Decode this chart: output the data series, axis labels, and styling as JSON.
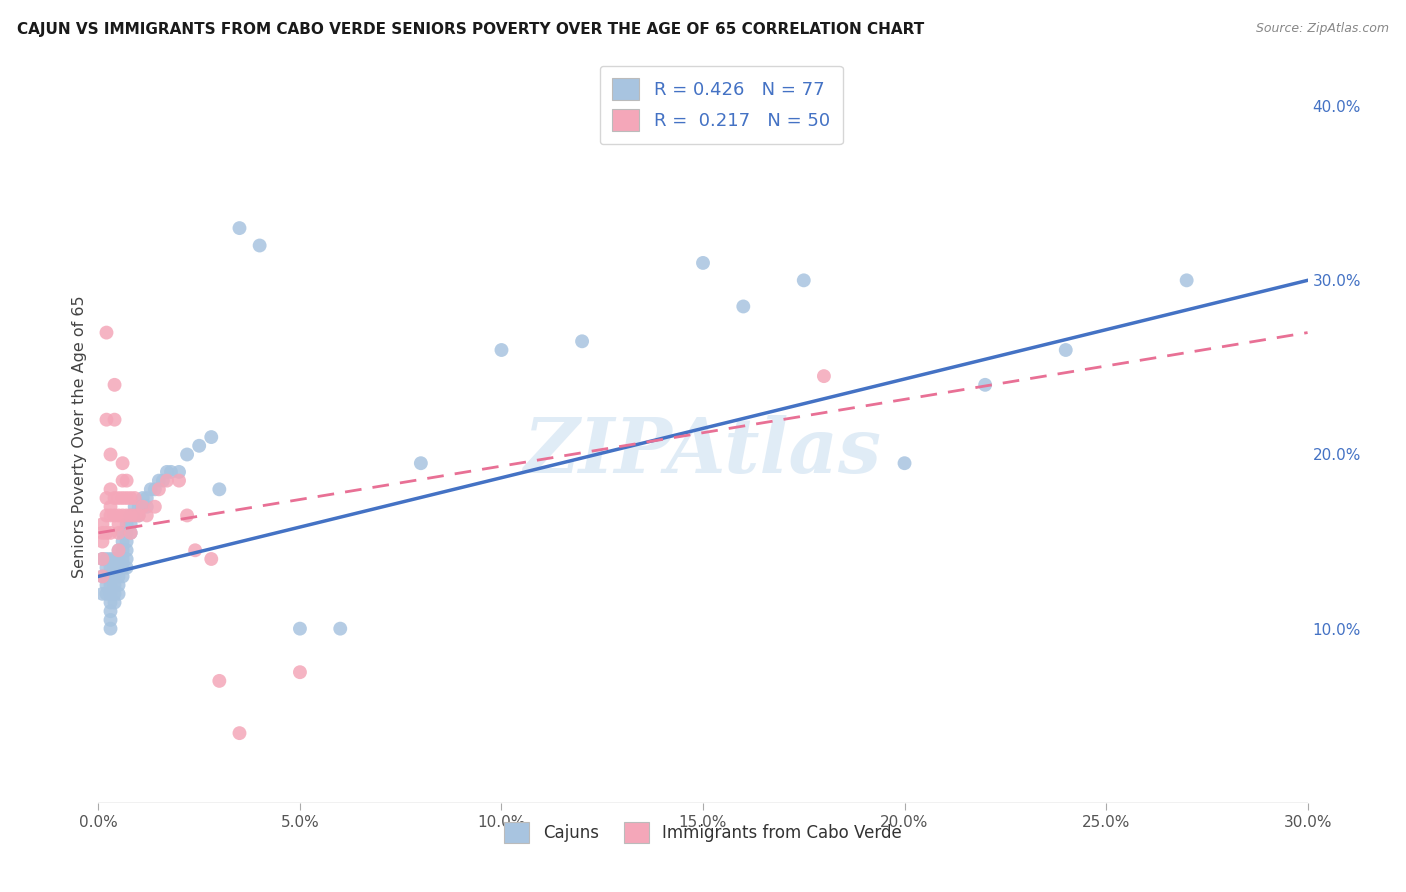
{
  "title": "CAJUN VS IMMIGRANTS FROM CABO VERDE SENIORS POVERTY OVER THE AGE OF 65 CORRELATION CHART",
  "source": "Source: ZipAtlas.com",
  "ylabel": "Seniors Poverty Over the Age of 65",
  "x_min": 0.0,
  "x_max": 0.3,
  "y_min": 0.0,
  "y_max": 0.42,
  "cajun_R": 0.426,
  "cajun_N": 77,
  "cabo_verde_R": 0.217,
  "cabo_verde_N": 50,
  "cajun_color": "#a8c4e0",
  "cabo_verde_color": "#f4a7b9",
  "cajun_line_color": "#4472c4",
  "cabo_verde_line_color": "#e87095",
  "watermark": "ZIPAtlas",
  "cajun_line_x0": 0.0,
  "cajun_line_y0": 0.13,
  "cajun_line_x1": 0.3,
  "cajun_line_y1": 0.3,
  "cabo_line_x0": 0.0,
  "cabo_line_y0": 0.155,
  "cabo_line_x1": 0.3,
  "cabo_line_y1": 0.27,
  "cajun_x": [
    0.001,
    0.001,
    0.001,
    0.002,
    0.002,
    0.002,
    0.002,
    0.002,
    0.003,
    0.003,
    0.003,
    0.003,
    0.003,
    0.003,
    0.003,
    0.003,
    0.003,
    0.004,
    0.004,
    0.004,
    0.004,
    0.004,
    0.004,
    0.005,
    0.005,
    0.005,
    0.005,
    0.005,
    0.005,
    0.006,
    0.006,
    0.006,
    0.006,
    0.006,
    0.006,
    0.007,
    0.007,
    0.007,
    0.007,
    0.007,
    0.007,
    0.008,
    0.008,
    0.008,
    0.009,
    0.009,
    0.01,
    0.01,
    0.011,
    0.011,
    0.012,
    0.012,
    0.013,
    0.014,
    0.015,
    0.016,
    0.017,
    0.018,
    0.02,
    0.022,
    0.025,
    0.028,
    0.03,
    0.035,
    0.04,
    0.05,
    0.06,
    0.08,
    0.1,
    0.12,
    0.15,
    0.16,
    0.175,
    0.2,
    0.22,
    0.24,
    0.27
  ],
  "cajun_y": [
    0.13,
    0.14,
    0.12,
    0.14,
    0.13,
    0.12,
    0.135,
    0.125,
    0.14,
    0.135,
    0.13,
    0.125,
    0.12,
    0.115,
    0.11,
    0.105,
    0.1,
    0.14,
    0.135,
    0.13,
    0.125,
    0.12,
    0.115,
    0.145,
    0.14,
    0.135,
    0.13,
    0.125,
    0.12,
    0.155,
    0.15,
    0.145,
    0.14,
    0.135,
    0.13,
    0.16,
    0.155,
    0.15,
    0.145,
    0.14,
    0.135,
    0.165,
    0.16,
    0.155,
    0.17,
    0.165,
    0.17,
    0.165,
    0.175,
    0.17,
    0.175,
    0.17,
    0.18,
    0.18,
    0.185,
    0.185,
    0.19,
    0.19,
    0.19,
    0.2,
    0.205,
    0.21,
    0.18,
    0.33,
    0.32,
    0.1,
    0.1,
    0.195,
    0.26,
    0.265,
    0.31,
    0.285,
    0.3,
    0.195,
    0.24,
    0.26,
    0.3
  ],
  "cabo_verde_x": [
    0.001,
    0.001,
    0.001,
    0.001,
    0.001,
    0.002,
    0.002,
    0.002,
    0.002,
    0.002,
    0.003,
    0.003,
    0.003,
    0.003,
    0.003,
    0.004,
    0.004,
    0.004,
    0.004,
    0.005,
    0.005,
    0.005,
    0.005,
    0.005,
    0.006,
    0.006,
    0.006,
    0.006,
    0.007,
    0.007,
    0.007,
    0.008,
    0.008,
    0.008,
    0.009,
    0.009,
    0.01,
    0.011,
    0.012,
    0.014,
    0.015,
    0.017,
    0.02,
    0.022,
    0.024,
    0.028,
    0.03,
    0.035,
    0.05,
    0.18
  ],
  "cabo_verde_y": [
    0.14,
    0.13,
    0.15,
    0.16,
    0.155,
    0.27,
    0.22,
    0.175,
    0.165,
    0.155,
    0.2,
    0.18,
    0.17,
    0.165,
    0.155,
    0.24,
    0.22,
    0.175,
    0.165,
    0.175,
    0.165,
    0.16,
    0.155,
    0.145,
    0.195,
    0.185,
    0.175,
    0.165,
    0.185,
    0.175,
    0.165,
    0.175,
    0.165,
    0.155,
    0.175,
    0.165,
    0.165,
    0.17,
    0.165,
    0.17,
    0.18,
    0.185,
    0.185,
    0.165,
    0.145,
    0.14,
    0.07,
    0.04,
    0.075,
    0.245
  ]
}
